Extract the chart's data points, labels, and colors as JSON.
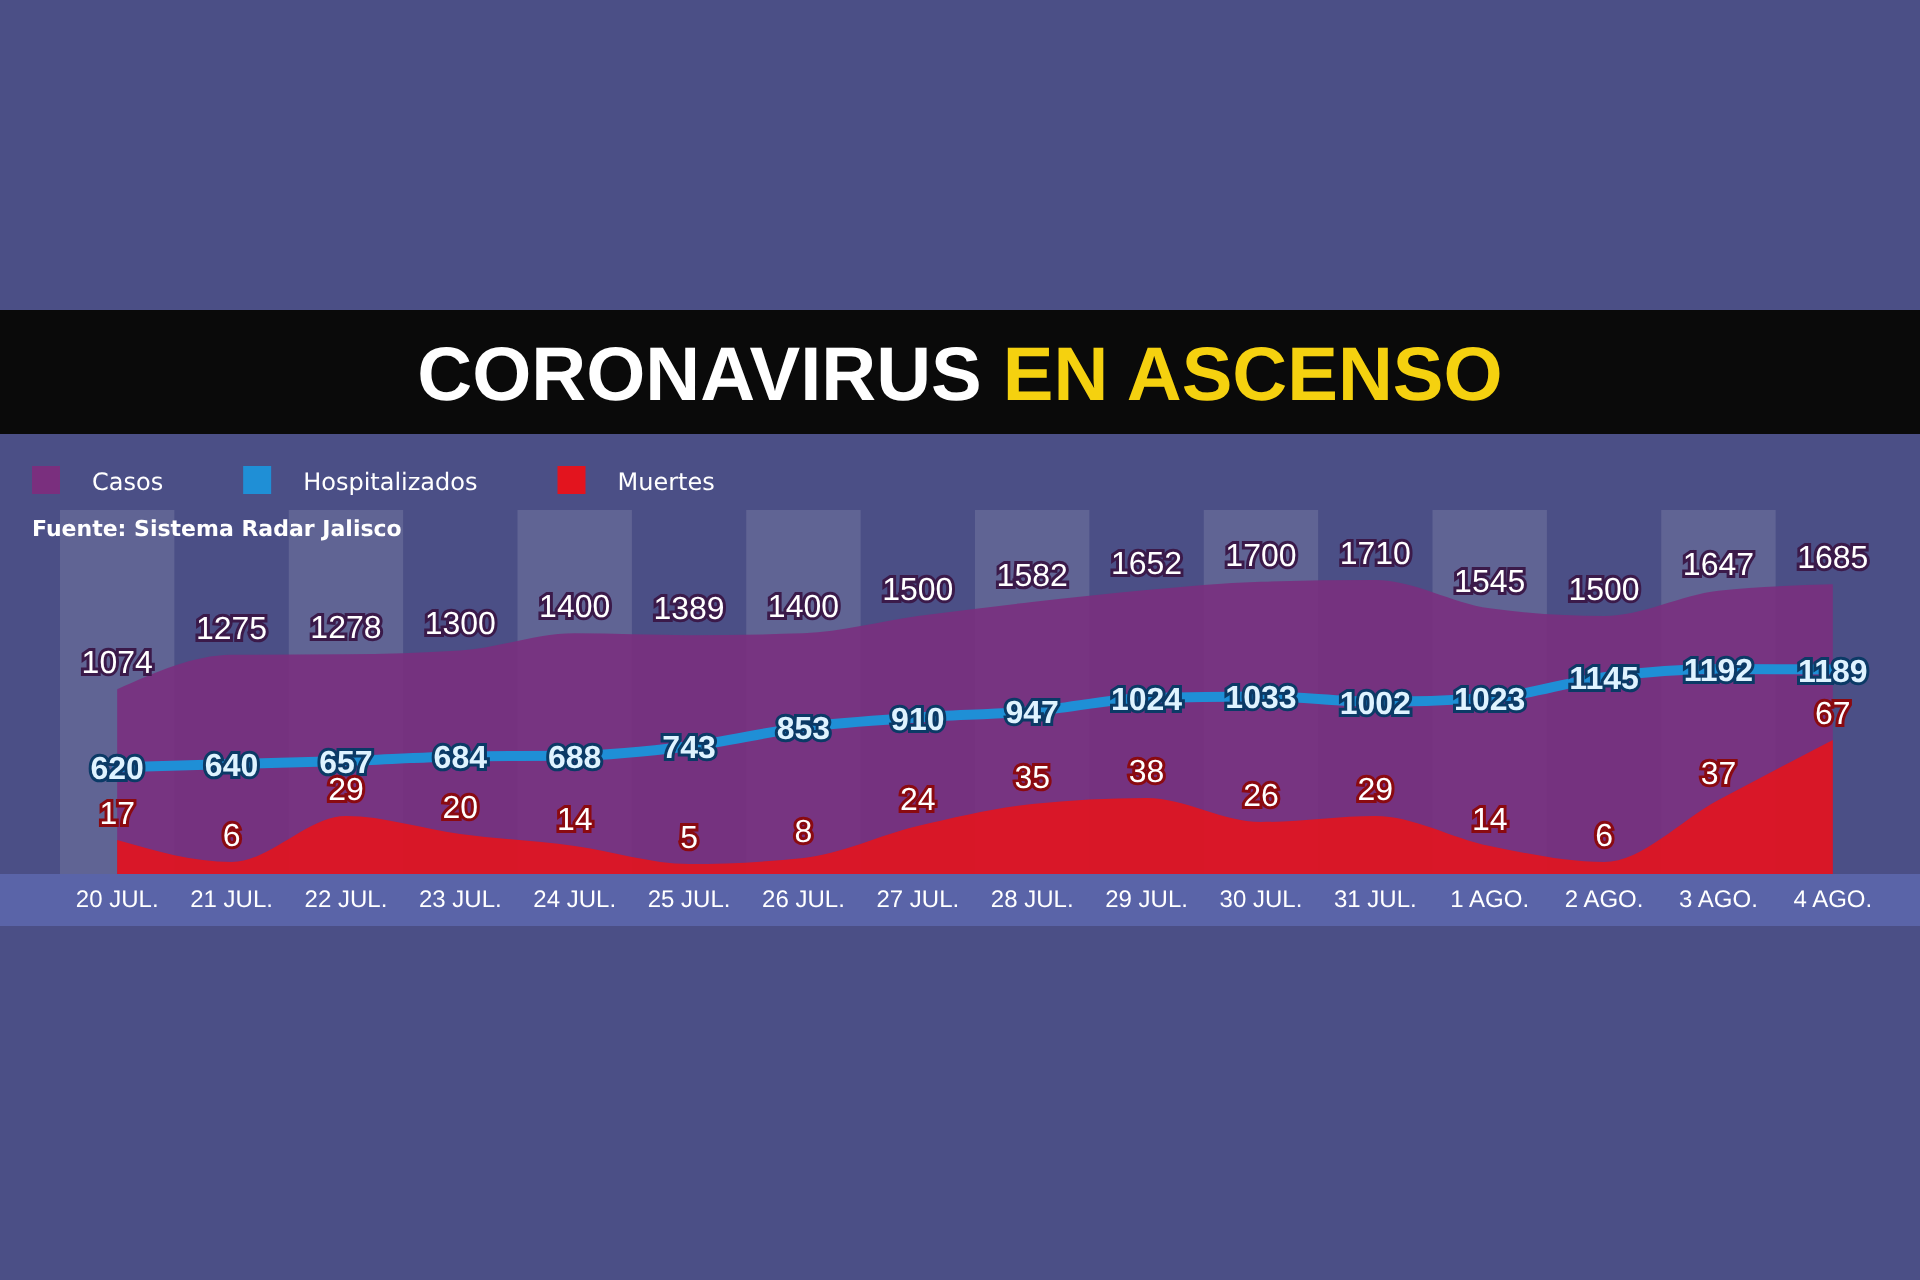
{
  "chart_data": {
    "type": "area",
    "title": "CORONAVIRUS EN ASCENSO",
    "annotations": [
      "Fuente: Sistema Radar Jalisco"
    ],
    "categories": [
      "20 JUL.",
      "21 JUL.",
      "22 JUL.",
      "23 JUL.",
      "24 JUL.",
      "25 JUL.",
      "26 JUL.",
      "27 JUL.",
      "28 JUL.",
      "29 JUL.",
      "30 JUL.",
      "31 JUL.",
      "1 AGO.",
      "2 AGO.",
      "3 AGO.",
      "4 AGO."
    ],
    "series": [
      {
        "name": "Casos",
        "color": "#7a2f7e",
        "values": [
          1074,
          1275,
          1278,
          1300,
          1400,
          1389,
          1400,
          1500,
          1582,
          1652,
          1700,
          1710,
          1545,
          1500,
          1647,
          1685
        ]
      },
      {
        "name": "Hospitalizados",
        "type": "line",
        "color": "#1f8fd6",
        "values": [
          620,
          640,
          657,
          684,
          688,
          743,
          853,
          910,
          947,
          1024,
          1033,
          1002,
          1023,
          1145,
          1192,
          1189
        ]
      },
      {
        "name": "Muertes",
        "axis": "y2",
        "color": "#e3141e",
        "values": [
          17,
          6,
          29,
          20,
          14,
          5,
          8,
          24,
          35,
          38,
          26,
          29,
          14,
          6,
          37,
          67
        ]
      }
    ],
    "data_labels": true,
    "legend": "top left",
    "grid": false
  }
}
